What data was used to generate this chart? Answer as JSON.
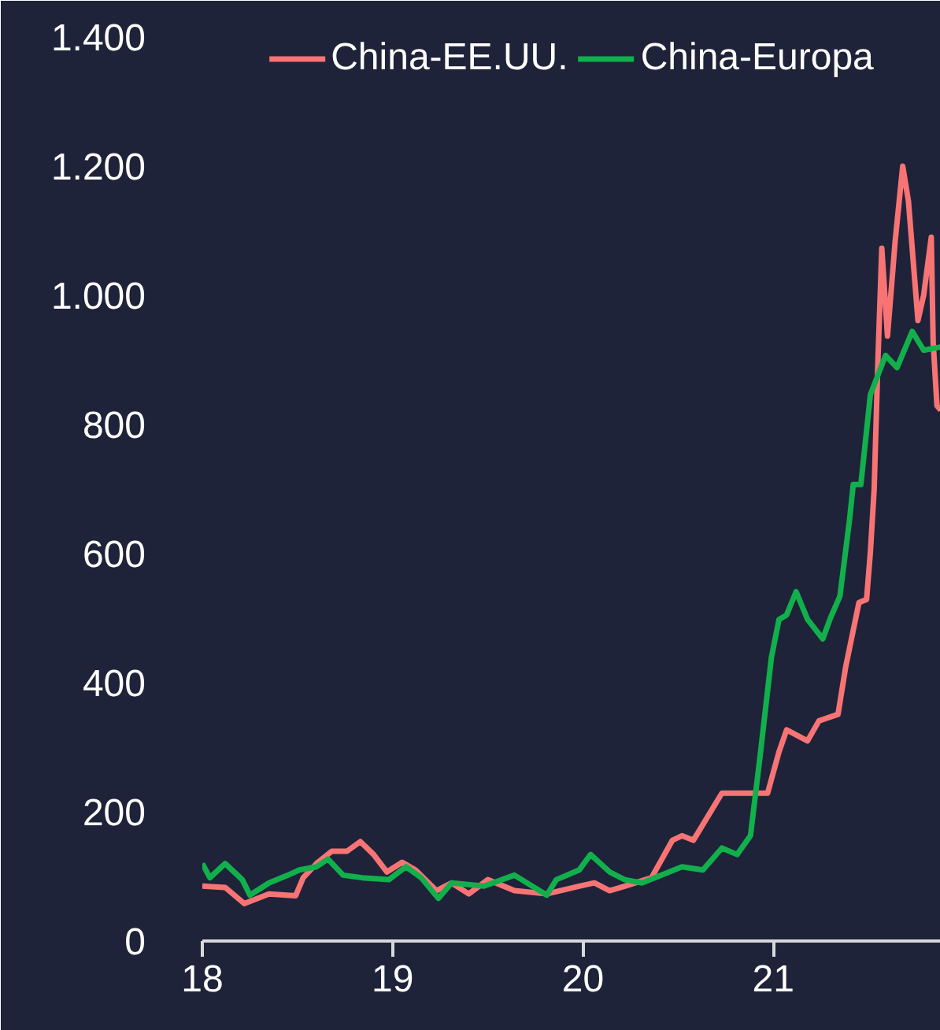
{
  "chart_data": {
    "type": "line",
    "series": [
      {
        "name": "China-EE.UU.",
        "color": "#f87474",
        "x": [
          18,
          18.12,
          18.22,
          18.35,
          18.49,
          18.53,
          18.6,
          18.68,
          18.76,
          18.83,
          18.9,
          18.97,
          19.05,
          19.12,
          19.23,
          19.31,
          19.4,
          19.5,
          19.64,
          19.81,
          19.98,
          20.06,
          20.14,
          20.22,
          20.36,
          20.47,
          20.52,
          20.58,
          20.73,
          20.97,
          21.03,
          21.07,
          21.18,
          21.24,
          21.34,
          21.38,
          21.45,
          21.49,
          21.51,
          21.53,
          21.55,
          21.57,
          21.6,
          21.64,
          21.68,
          21.71,
          21.76,
          21.79,
          21.83,
          21.84,
          21.86,
          21.88
        ],
        "values": [
          85,
          83,
          58,
          73,
          70,
          98,
          120,
          139,
          139,
          154,
          134,
          107,
          122,
          110,
          78,
          90,
          73,
          95,
          78,
          73,
          85,
          90,
          78,
          85,
          98,
          156,
          163,
          156,
          229,
          229,
          293,
          327,
          310,
          341,
          351,
          424,
          524,
          529,
          602,
          700,
          902,
          1073,
          937,
          1083,
          1200,
          1146,
          961,
          1000,
          1090,
          927,
          829,
          822
        ]
      },
      {
        "name": "China-Europa",
        "color": "#12b04c",
        "x": [
          18,
          18.04,
          18.12,
          18.21,
          18.25,
          18.35,
          18.45,
          18.51,
          18.6,
          18.66,
          18.74,
          18.84,
          18.98,
          19.07,
          19.15,
          19.24,
          19.31,
          19.48,
          19.64,
          19.81,
          19.86,
          19.98,
          20.04,
          20.14,
          20.22,
          20.31,
          20.52,
          20.63,
          20.73,
          20.81,
          20.88,
          20.93,
          20.99,
          21.03,
          21.07,
          21.12,
          21.18,
          21.26,
          21.3,
          21.35,
          21.4,
          21.42,
          21.46,
          21.51,
          21.59,
          21.65,
          21.73,
          21.79,
          21.88
        ],
        "values": [
          120,
          98,
          120,
          95,
          71,
          90,
          102,
          110,
          115,
          127,
          102,
          98,
          95,
          115,
          98,
          66,
          90,
          85,
          102,
          71,
          95,
          110,
          134,
          107,
          95,
          90,
          115,
          110,
          144,
          134,
          163,
          285,
          439,
          498,
          505,
          541,
          498,
          468,
          500,
          534,
          651,
          707,
          707,
          846,
          907,
          888,
          944,
          915,
          920
        ]
      }
    ],
    "xlim": [
      18,
      21.88
    ],
    "xticks": [
      18,
      19,
      20,
      21
    ],
    "ylim": [
      0,
      1400
    ],
    "yticks": [
      0,
      200,
      400,
      600,
      800,
      {
        "value": 1000,
        "label": "1.000"
      },
      {
        "value": 1200,
        "label": "1.200"
      },
      {
        "value": 1400,
        "label": "1.400"
      }
    ],
    "grid": false,
    "legend": "top",
    "line_style": "solid",
    "marker": "none"
  }
}
